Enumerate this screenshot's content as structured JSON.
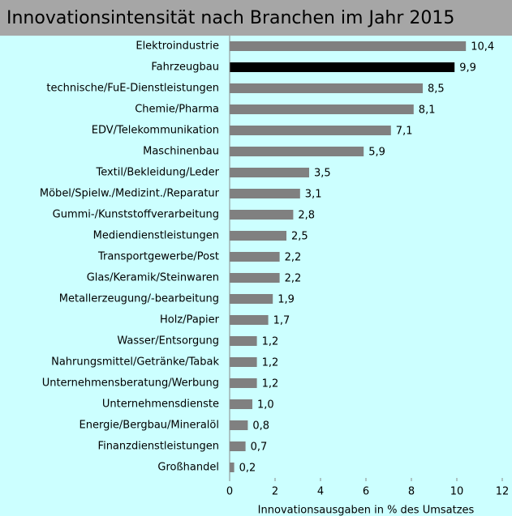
{
  "chart_data": {
    "type": "bar",
    "orientation": "horizontal",
    "title": "Innovationsintensität nach Branchen im Jahr 2015",
    "xlabel": "Innovationsausgaben in % des Umsatzes",
    "categories": [
      "Elektroindustrie",
      "Fahrzeugbau",
      "technische/FuE-Dienstleistungen",
      "Chemie/Pharma",
      "EDV/Telekommunikation",
      "Maschinenbau",
      "Textil/Bekleidung/Leder",
      "Möbel/Spielw./Medizint./Reparatur",
      "Gummi-/Kunststoffverarbeitung",
      "Mediendienstleistungen",
      "Transportgewerbe/Post",
      "Glas/Keramik/Steinwaren",
      "Metallerzeugung/-bearbeitung",
      "Holz/Papier",
      "Wasser/Entsorgung",
      "Nahrungsmittel/Getränke/Tabak",
      "Unternehmensberatung/Werbung",
      "Unternehmensdienste",
      "Energie/Bergbau/Mineralöl",
      "Finanzdienstleistungen",
      "Großhandel"
    ],
    "values": [
      10.4,
      9.9,
      8.5,
      8.1,
      7.1,
      5.9,
      3.5,
      3.1,
      2.8,
      2.5,
      2.2,
      2.2,
      1.9,
      1.7,
      1.2,
      1.2,
      1.2,
      1.0,
      0.8,
      0.7,
      0.2
    ],
    "value_labels": [
      "10,4",
      "9,9",
      "8,5",
      "8,1",
      "7,1",
      "5,9",
      "3,5",
      "3,1",
      "2,8",
      "2,5",
      "2,2",
      "2,2",
      "1,9",
      "1,7",
      "1,2",
      "1,2",
      "1,2",
      "1,0",
      "0,8",
      "0,7",
      "0,2"
    ],
    "colors": [
      "#808080",
      "#000000",
      "#808080",
      "#808080",
      "#808080",
      "#808080",
      "#808080",
      "#808080",
      "#808080",
      "#808080",
      "#808080",
      "#808080",
      "#808080",
      "#808080",
      "#808080",
      "#808080",
      "#808080",
      "#808080",
      "#808080",
      "#808080",
      "#808080"
    ],
    "xlim": [
      0,
      12
    ],
    "xticks": [
      0,
      2,
      4,
      6,
      8,
      10,
      12
    ]
  }
}
